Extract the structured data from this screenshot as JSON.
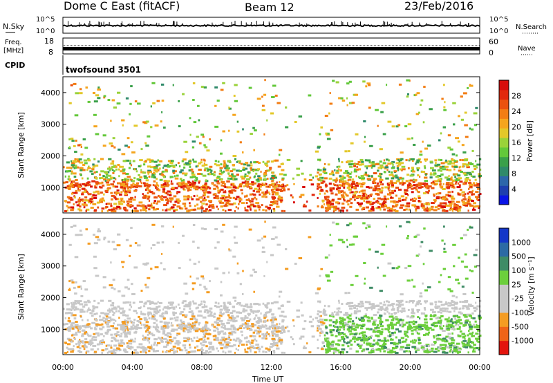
{
  "header": {
    "station": "Dome C East (fitACF)",
    "beam": "Beam 12",
    "date": "23/Feb/2016"
  },
  "panels": {
    "nsky": {
      "label": "N.Sky",
      "tick_top": "10^5",
      "tick_bottom": "10^0",
      "right_label": "N.Search",
      "right_tick_top": "10^5",
      "right_tick_bottom": "10^0"
    },
    "freq": {
      "label_line1": "Freq.",
      "label_line2": "[MHz]",
      "tick_top": "18",
      "tick_bottom": "8",
      "right_label": "Nave",
      "right_tick_top": "60",
      "right_tick_bottom": "0"
    },
    "cpid": {
      "label": "CPID",
      "program": "twofsound  3501"
    }
  },
  "chart_data": [
    {
      "type": "heatmap",
      "title": "",
      "xlabel": "",
      "ylabel": "Slant Range [km]",
      "xlim": [
        "00:00",
        "24:00"
      ],
      "ylim": [
        200,
        4500
      ],
      "y_ticks": [
        "1000",
        "2000",
        "3000",
        "4000"
      ],
      "colorbar": {
        "label": "Power [dB]",
        "ticks": [
          "4",
          "8",
          "12",
          "16",
          "20",
          "24",
          "28"
        ],
        "range": [
          0,
          30
        ],
        "colors": [
          "#0a14e6",
          "#1f3fae",
          "#2d66aa",
          "#2f8a6a",
          "#3aa04a",
          "#63c83a",
          "#9ad23a",
          "#e3c82a",
          "#f5a51e",
          "#f27d14",
          "#ea520f",
          "#e2280c",
          "#d80d0b"
        ]
      },
      "series": [
        {
          "band_km": [
            1000,
            1700
          ],
          "time_h": [
            0,
            24
          ],
          "mean_db": 20
        },
        {
          "band_km": [
            300,
            1100
          ],
          "time_h": [
            0,
            24
          ],
          "mean_db": 26
        }
      ]
    },
    {
      "type": "heatmap",
      "title": "",
      "xlabel": "Time UT",
      "ylabel": "Slant Range [km]",
      "xlim": [
        "00:00",
        "24:00"
      ],
      "ylim": [
        200,
        4500
      ],
      "y_ticks": [
        "1000",
        "2000",
        "3000",
        "4000"
      ],
      "x_ticks": [
        "00:00",
        "04:00",
        "08:00",
        "12:00",
        "16:00",
        "20:00",
        "00:00"
      ],
      "colorbar": {
        "label": "Velocity [m s⁻¹]",
        "ticks": [
          "1000",
          "500",
          "100",
          "25",
          "-25",
          "-100",
          "-500",
          "-1000"
        ],
        "range": [
          -1000,
          1000
        ],
        "colors": [
          "#e3150e",
          "#ef6418",
          "#f49c22",
          "#c8c8c8",
          "#c8c8c8",
          "#6ccf3c",
          "#3f8c66",
          "#2c6aa4",
          "#1436c8"
        ]
      },
      "series": [
        {
          "band_km": [
            1500,
            2100
          ],
          "time_h": [
            0,
            24
          ],
          "mean_ms": 0
        },
        {
          "band_km": [
            400,
            1200
          ],
          "time_h": [
            0,
            15
          ],
          "mean_ms": -150
        },
        {
          "band_km": [
            400,
            1200
          ],
          "time_h": [
            15,
            24
          ],
          "mean_ms": 200
        }
      ]
    }
  ]
}
